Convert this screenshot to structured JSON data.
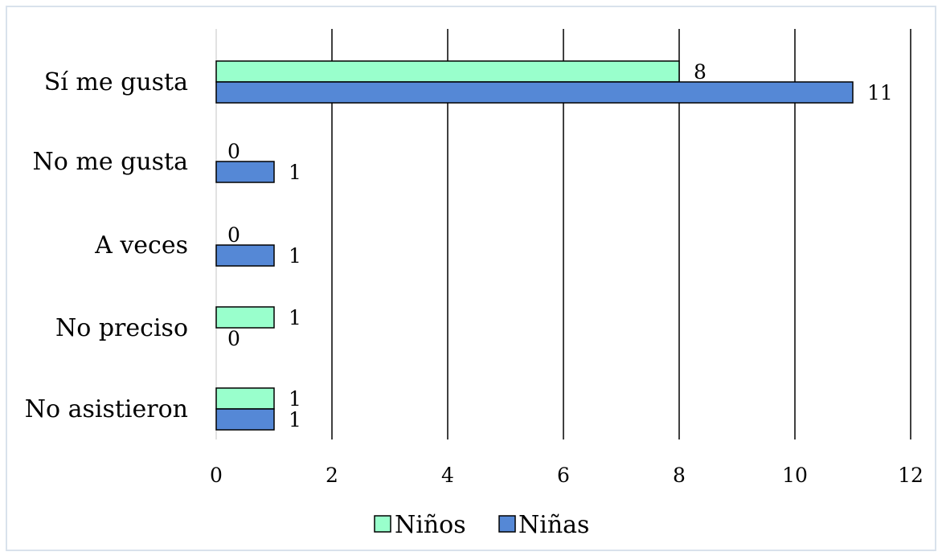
{
  "chart_data": {
    "type": "bar",
    "orientation": "horizontal",
    "categories": [
      "Sí me gusta",
      "No me gusta",
      "A veces",
      "No preciso",
      "No asistieron"
    ],
    "series": [
      {
        "name": "Niños",
        "values": [
          8,
          0,
          0,
          1,
          1
        ],
        "labels": [
          "8",
          "0",
          "0",
          "1",
          "1"
        ],
        "color": "#99FFCC"
      },
      {
        "name": "Niñas",
        "values": [
          11,
          1,
          1,
          0,
          1
        ],
        "labels": [
          "11",
          "1",
          "1",
          "0",
          "1"
        ],
        "color": "#5588D6"
      }
    ],
    "xlim": [
      0,
      12
    ],
    "xticks": [
      0,
      2,
      4,
      6,
      8,
      10,
      12
    ],
    "xtick_labels": [
      "0",
      "2",
      "4",
      "6",
      "8",
      "10",
      "12"
    ],
    "grid": "vertical major",
    "legend": "bottom",
    "colors": {
      "border": "#d9e2ec",
      "bar_edge": "#000000",
      "grid": "#000000"
    }
  }
}
